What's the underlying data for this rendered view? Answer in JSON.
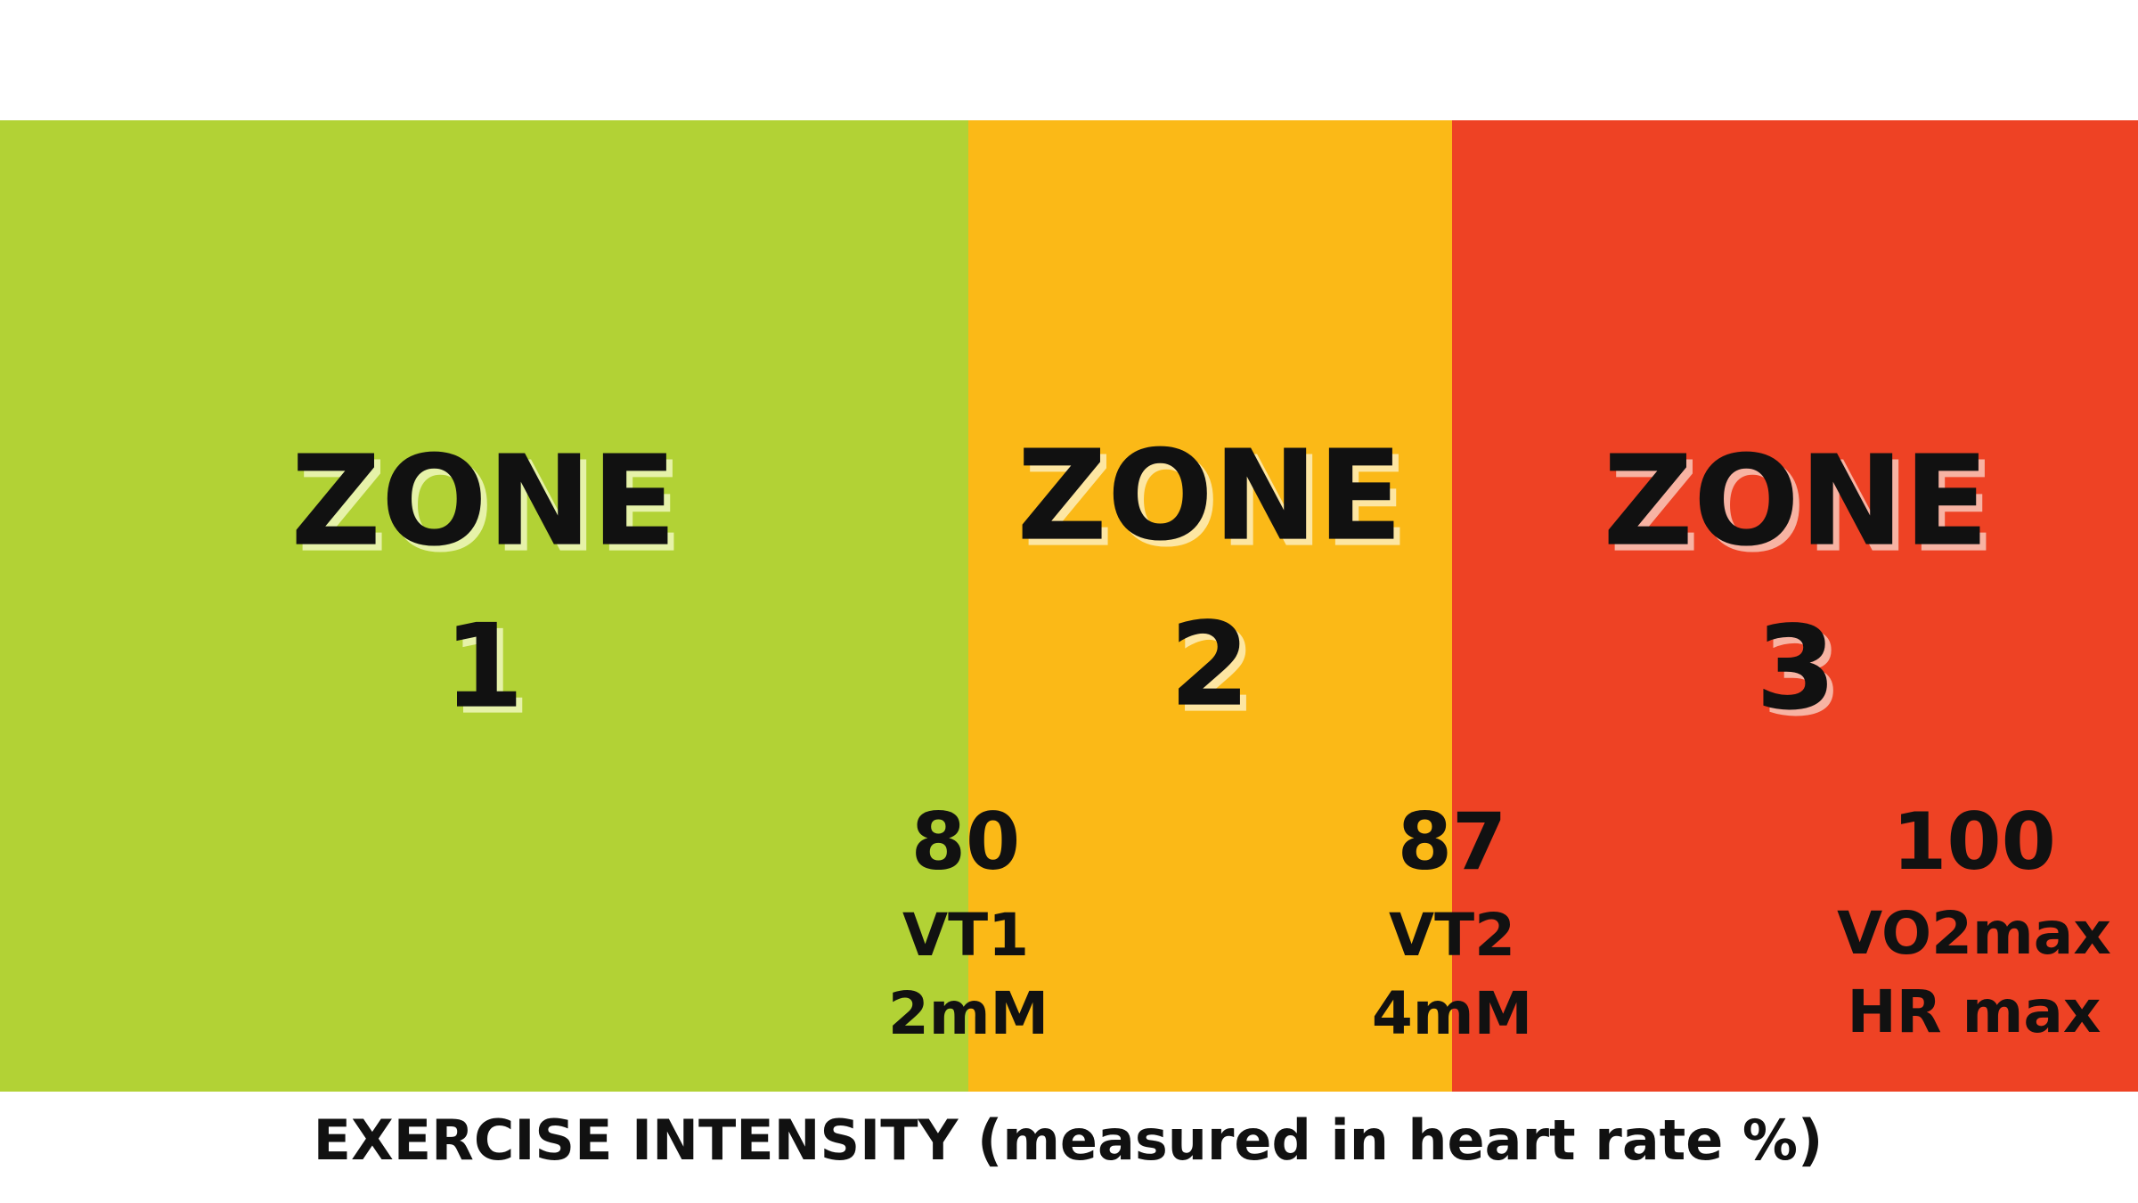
{
  "zones": [
    {
      "label": "ZONE",
      "number": "1"
    },
    {
      "label": "ZONE",
      "number": "2"
    },
    {
      "label": "ZONE",
      "number": "3"
    }
  ],
  "thresholds": [
    {
      "value": 80,
      "name": "VT1",
      "detail": "2mM"
    },
    {
      "value": 87,
      "name": "VT2",
      "detail": "4mM"
    },
    {
      "value": 100,
      "name": "VO2max",
      "detail": "HR max"
    }
  ],
  "axis_label": "EXERCISE INTENSITY (measured in heart rate %)"
}
